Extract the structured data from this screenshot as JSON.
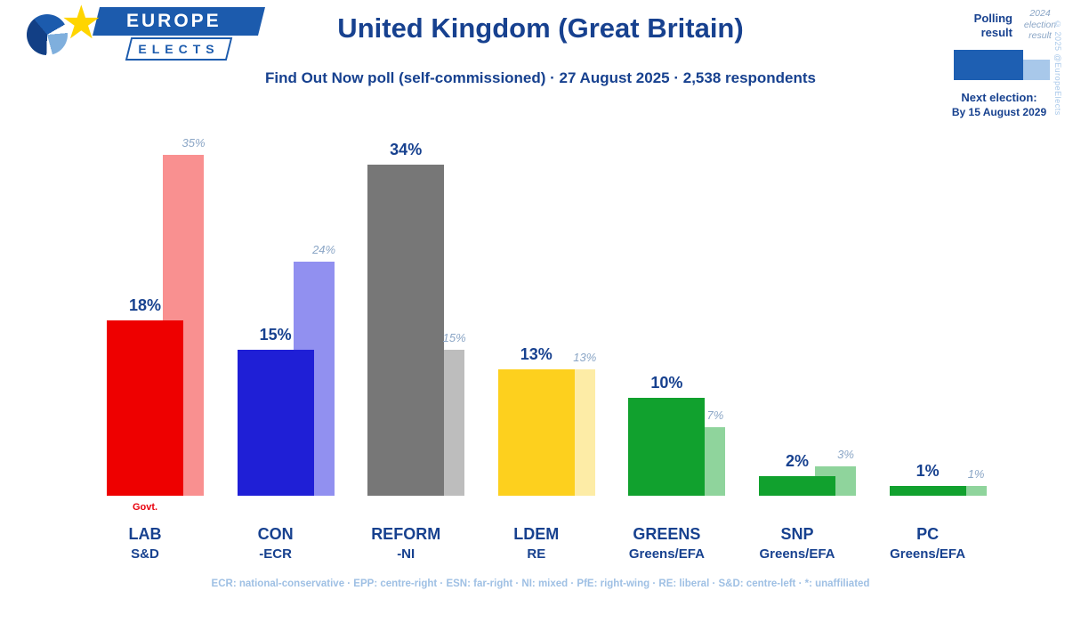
{
  "header": {
    "logo": {
      "line1": "EUROPE",
      "line2": "ELECTS"
    },
    "title": "United Kingdom (Great Britain)",
    "subtitle": "Find Out Now poll (self-commissioned) · 27 August 2025 · 2,538 respondents"
  },
  "legend": {
    "polling_label": "Polling result",
    "election_label": "2024 election result",
    "polling_color": "#1e5fb2",
    "election_color": "#a8c8ea",
    "next_election_label": "Next election:",
    "next_election_date": "By 15 August 2029",
    "copyright": "© 2025 @EuropeElects"
  },
  "chart_data": {
    "type": "bar",
    "title": "United Kingdom (Great Britain)",
    "subtitle": "Find Out Now poll (self-commissioned) · 27 August 2025 · 2,538 respondents",
    "unit": "%",
    "ylim": [
      0,
      36
    ],
    "grid": false,
    "legend_position": "top-right",
    "categories": [
      "LAB",
      "CON",
      "REFORM",
      "LDEM",
      "GREENS",
      "SNP",
      "PC"
    ],
    "series": [
      {
        "name": "Polling result",
        "values": [
          18,
          15,
          34,
          13,
          10,
          2,
          1
        ]
      },
      {
        "name": "2024 election result",
        "values": [
          35,
          24,
          15,
          13,
          7,
          3,
          1
        ]
      }
    ],
    "parties": [
      {
        "abbr": "LAB",
        "group": "S&D",
        "poll": 18,
        "election": 35,
        "color": "#ee0000",
        "light": "#f99090",
        "note": "Govt."
      },
      {
        "abbr": "CON",
        "group": "-ECR",
        "poll": 15,
        "election": 24,
        "color": "#1f1fd6",
        "light": "#9190f0",
        "note": ""
      },
      {
        "abbr": "REFORM",
        "group": "-NI",
        "poll": 34,
        "election": 15,
        "color": "#777777",
        "light": "#bdbdbd",
        "note": ""
      },
      {
        "abbr": "LDEM",
        "group": "RE",
        "poll": 13,
        "election": 13,
        "color": "#fdd01e",
        "light": "#fdeca6",
        "note": ""
      },
      {
        "abbr": "GREENS",
        "group": "Greens/EFA",
        "poll": 10,
        "election": 7,
        "color": "#11a12e",
        "light": "#8fd49c",
        "note": ""
      },
      {
        "abbr": "SNP",
        "group": "Greens/EFA",
        "poll": 2,
        "election": 3,
        "color": "#11a12e",
        "light": "#8fd49c",
        "note": ""
      },
      {
        "abbr": "PC",
        "group": "Greens/EFA",
        "poll": 1,
        "election": 1,
        "color": "#11a12e",
        "light": "#8fd49c",
        "note": ""
      }
    ]
  },
  "footer": {
    "text": "ECR: national-conservative · EPP: centre-right · ESN: far-right · NI: mixed · PfE: right-wing · RE: liberal · S&D: centre-left · *: unaffiliated"
  }
}
